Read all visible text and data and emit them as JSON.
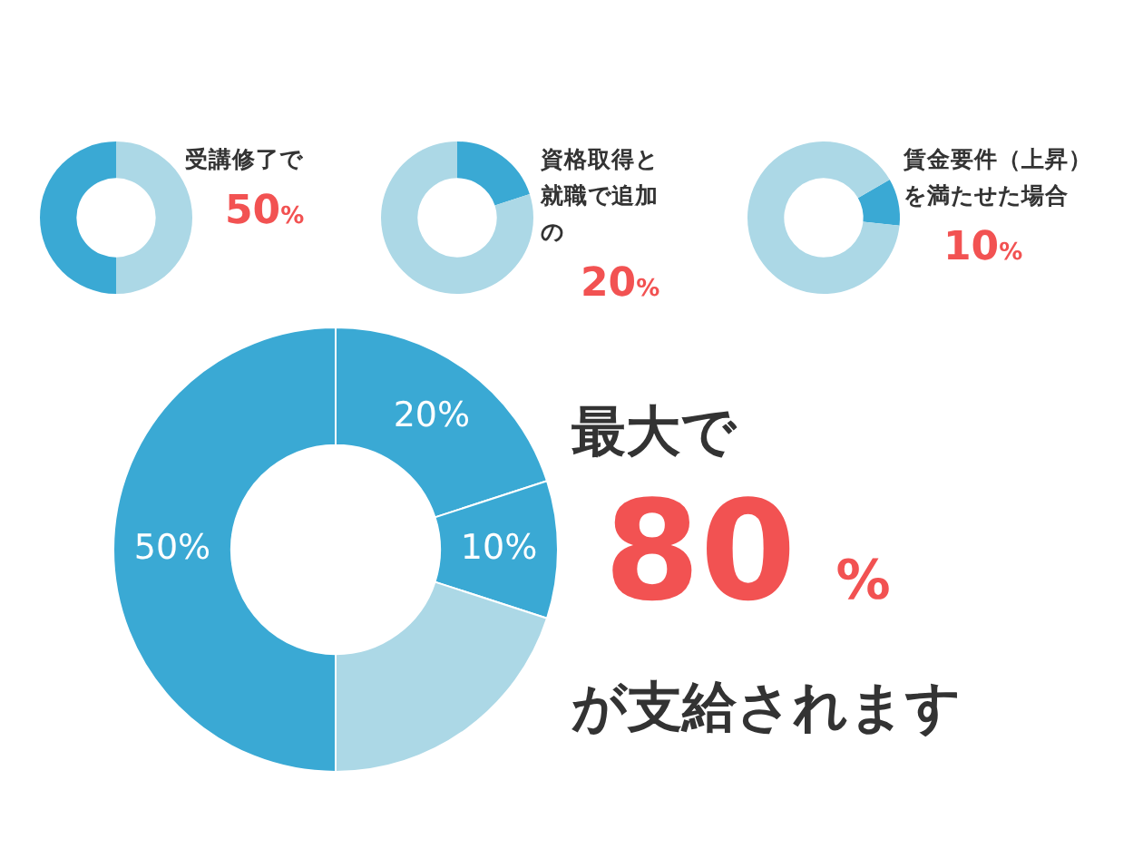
{
  "chart_data": [
    {
      "type": "donut",
      "title": "受講修了で",
      "annotations": [
        "50%"
      ],
      "categories": [
        null,
        null
      ],
      "values": [
        50,
        50
      ],
      "colors": [
        "#acd8e6",
        "#3aa9d4"
      ],
      "legend": false
    },
    {
      "type": "donut",
      "title": "資格取得と就職で追加の",
      "annotations": [
        "20%"
      ],
      "categories": [
        null,
        null
      ],
      "values": [
        20,
        80
      ],
      "colors": [
        "#3aa9d4",
        "#acd8e6"
      ],
      "legend": false
    },
    {
      "type": "donut",
      "title": "賃金要件（上昇）を満たせた場合",
      "annotations": [
        "10%"
      ],
      "categories": [
        null,
        null
      ],
      "values": [
        10,
        90
      ],
      "colors": [
        "#3aa9d4",
        "#acd8e6"
      ],
      "legend": false
    },
    {
      "type": "donut",
      "annotations": [
        "最大で",
        "80%",
        "が支給されます"
      ],
      "categories": [
        null,
        null,
        null,
        null
      ],
      "values": [
        20,
        10,
        20,
        50
      ],
      "colors": [
        "#3aa9d4",
        "#3aa9d4",
        "#acd8e6",
        "#3aa9d4"
      ],
      "value_labels": [
        "20%",
        "10%",
        null,
        "50%"
      ],
      "legend": false
    }
  ]
}
